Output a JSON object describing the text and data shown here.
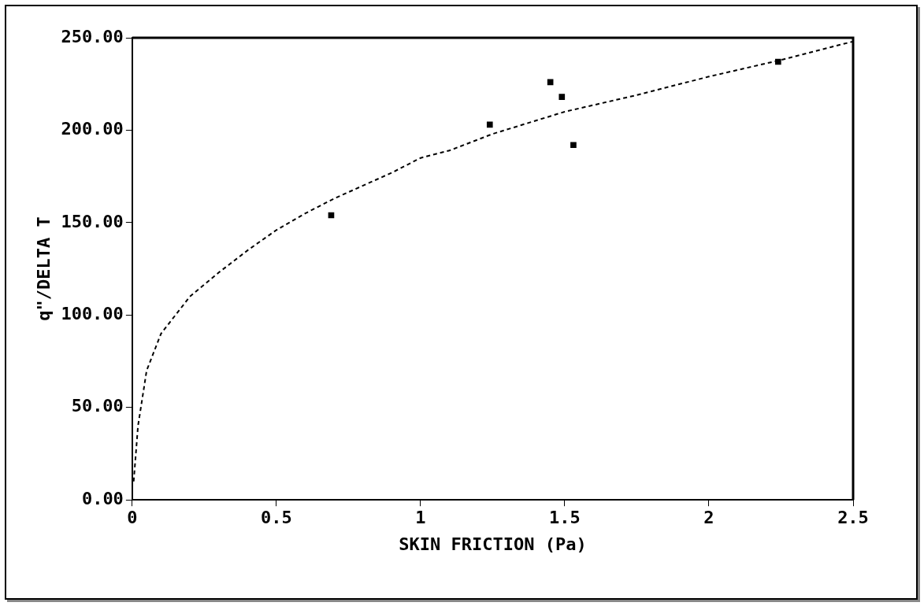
{
  "chart_data": {
    "type": "scatter",
    "xlabel": "SKIN FRICTION (Pa)",
    "ylabel": "q\"/DELTA T",
    "xlim": [
      0,
      2.5
    ],
    "xticks": [
      0,
      0.5,
      1,
      1.5,
      2,
      2.5
    ],
    "ylim": [
      0,
      250
    ],
    "yticks": [
      {
        "value": 0,
        "label": "0.00"
      },
      {
        "value": 50,
        "label": "50.00"
      },
      {
        "value": 100,
        "label": "100.00"
      },
      {
        "value": 150,
        "label": "150.00"
      },
      {
        "value": 200,
        "label": "200.00"
      },
      {
        "value": 250,
        "label": "250.00"
      }
    ],
    "grid": false,
    "legend": false,
    "series": [
      {
        "color": "#000000",
        "marker": "square",
        "x": [
          0.69,
          1.24,
          1.45,
          1.49,
          1.53,
          2.24
        ],
        "values": [
          154,
          203,
          226,
          218,
          192,
          237
        ]
      },
      {
        "type": "line",
        "color": "#000000",
        "marker": "none",
        "line_style": "dashed",
        "x": [
          0.005,
          0.02,
          0.05,
          0.1,
          0.15,
          0.2,
          0.3,
          0.4,
          0.5,
          0.6,
          0.7,
          0.8,
          0.9,
          1.0,
          1.1,
          1.25,
          1.5,
          1.75,
          2.0,
          2.25,
          2.5
        ],
        "values": [
          10,
          40,
          70,
          90,
          100,
          110,
          123,
          135,
          146,
          155,
          163,
          170,
          177,
          185,
          189,
          198,
          210,
          219,
          229,
          238,
          248
        ]
      }
    ]
  }
}
